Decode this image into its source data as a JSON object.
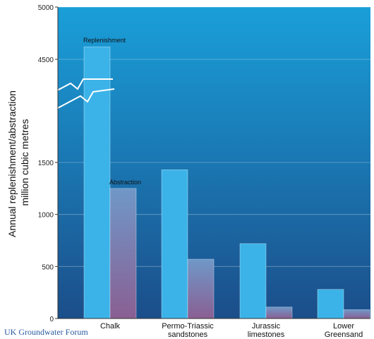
{
  "chart_data": {
    "type": "bar",
    "ylabel_lines": [
      "Annual replenishment/abstraction",
      "million cubic metres"
    ],
    "yticks": [
      0,
      500,
      1000,
      1500,
      4500,
      5000
    ],
    "axis_break": true,
    "categories": [
      [
        "Chalk"
      ],
      [
        "Permo-Triassic",
        "sandstones"
      ],
      [
        "Jurassic",
        "limestones"
      ],
      [
        "Lower",
        "Greensand"
      ]
    ],
    "series": [
      {
        "name": "Replenishment",
        "values": [
          4620,
          1430,
          720,
          280
        ]
      },
      {
        "name": "Abstraction",
        "values": [
          1250,
          570,
          110,
          85
        ]
      }
    ]
  },
  "credit": "UK Groundwater Forum",
  "colors": {
    "bg_top": "#1a9fd9",
    "bg_bottom": "#1b4e8a",
    "replenishment": "#3bb3e8",
    "abstraction_top": "#6f98c8",
    "abstraction_bottom": "#8a5f93"
  }
}
